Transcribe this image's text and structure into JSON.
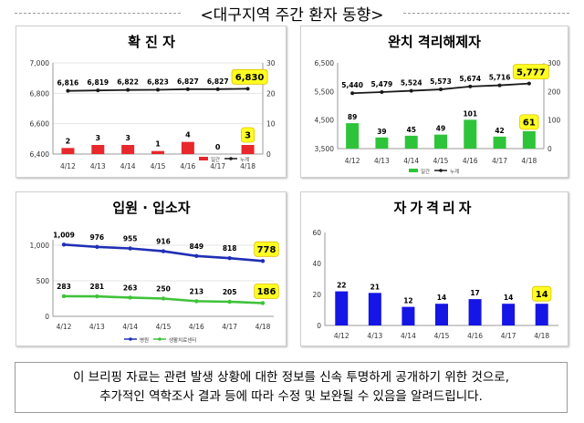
{
  "page_title": "<대구지역 주간 환자 동향>",
  "notice": {
    "line1": "이 브리핑 자료는 관련 발생 상황에 대한 정보를 신속 투명하게 공개하기 위한 것으로,",
    "line2": "추가적인 역학조사 결과 등에 따라 수정 및 보완될 수 있음을 알려드립니다."
  },
  "colors": {
    "bar_red": "#e8282c",
    "bar_green": "#2ec43a",
    "bar_blue": "#1515e6",
    "line_black": "#1a1a1a",
    "line_blue": "#1f2fb5",
    "line_green": "#3fc23a",
    "highlight": "#ffff22"
  },
  "chart_data": [
    {
      "type": "bar+line",
      "title": "확 진 자",
      "categories": [
        "4/12",
        "4/13",
        "4/14",
        "4/15",
        "4/16",
        "4/17",
        "4/18"
      ],
      "series": [
        {
          "name": "일간",
          "type": "bar",
          "axis": "right",
          "values": [
            2,
            3,
            3,
            1,
            4,
            0,
            3
          ]
        },
        {
          "name": "누계",
          "type": "line",
          "axis": "left",
          "values": [
            6816,
            6819,
            6822,
            6823,
            6827,
            6827,
            6830
          ]
        }
      ],
      "left_axis": {
        "range": [
          6400,
          7000
        ],
        "ticks": [
          "6,400",
          "6,600",
          "6,800",
          "7,000"
        ]
      },
      "right_axis": {
        "range": [
          0,
          30
        ],
        "ticks": [
          "0",
          "10",
          "20",
          "30"
        ]
      },
      "highlight_last": true,
      "legend": "bottom-right"
    },
    {
      "type": "bar+line",
      "title": "완치 격리해제자",
      "categories": [
        "4/12",
        "4/13",
        "4/14",
        "4/15",
        "4/16",
        "4/17",
        "4/18"
      ],
      "series": [
        {
          "name": "일간",
          "type": "bar",
          "axis": "right",
          "values": [
            89,
            39,
            45,
            49,
            101,
            42,
            61
          ]
        },
        {
          "name": "누계",
          "type": "line",
          "axis": "left",
          "values": [
            5440,
            5479,
            5524,
            5573,
            5674,
            5716,
            5777
          ]
        }
      ],
      "left_axis": {
        "range": [
          3500,
          6500
        ],
        "ticks": [
          "3,500",
          "4,500",
          "5,500",
          "6,500"
        ]
      },
      "right_axis": {
        "range": [
          0,
          300
        ],
        "ticks": [
          "0",
          "100",
          "200",
          "300"
        ]
      },
      "highlight_last": true,
      "legend": "bottom-center"
    },
    {
      "type": "line",
      "title": "입원 · 입소자",
      "categories": [
        "4/12",
        "4/13",
        "4/14",
        "4/15",
        "4/16",
        "4/17",
        "4/18"
      ],
      "series": [
        {
          "name": "병원",
          "values": [
            1009,
            976,
            955,
            916,
            849,
            818,
            778
          ]
        },
        {
          "name": "생활치료센터",
          "values": [
            283,
            281,
            263,
            250,
            213,
            205,
            186
          ]
        }
      ],
      "y_axis": {
        "range": [
          0,
          1000
        ],
        "ticks": [
          "0",
          "500",
          "1,000"
        ]
      },
      "highlight_last": true,
      "legend": "bottom-center"
    },
    {
      "type": "bar",
      "title": "자가격리자",
      "categories": [
        "4/12",
        "4/13",
        "4/14",
        "4/15",
        "4/16",
        "4/17",
        "4/18"
      ],
      "values": [
        22,
        21,
        12,
        14,
        17,
        14,
        14
      ],
      "y_axis": {
        "range": [
          0,
          60
        ],
        "ticks": [
          "0",
          "20",
          "40",
          "60"
        ]
      },
      "highlight_last": true
    }
  ]
}
